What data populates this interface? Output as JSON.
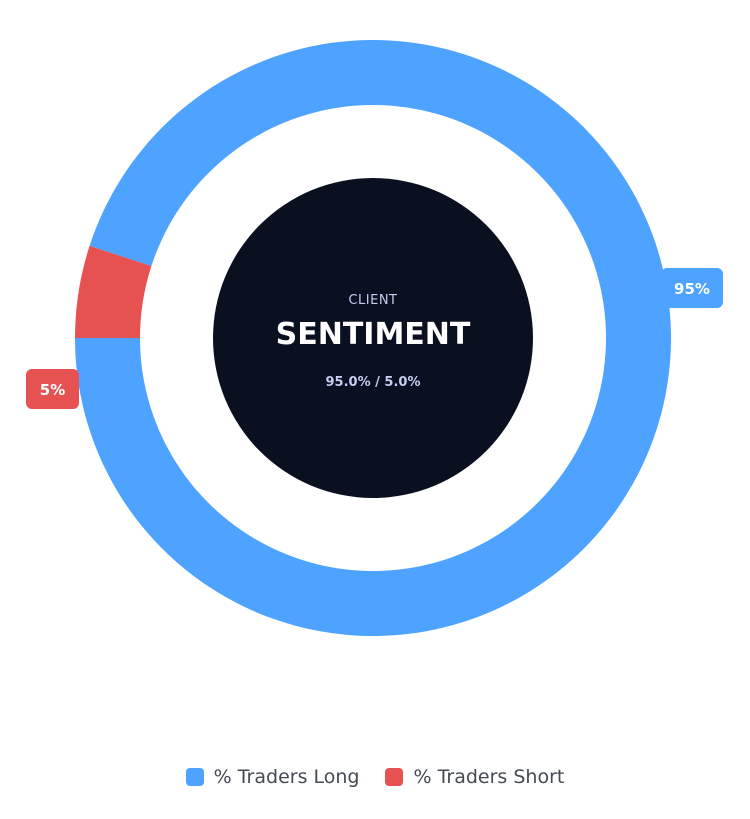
{
  "chart_data": {
    "type": "pie",
    "donut": true,
    "center": {
      "subtitle": "CLIENT",
      "title": "SENTIMENT",
      "ratio_text": "95.0% / 5.0%"
    },
    "series": [
      {
        "name": "% Traders Long",
        "value": 95.0,
        "label": "95%",
        "color": "#4da3ff"
      },
      {
        "name": "% Traders Short",
        "value": 5.0,
        "label": "5%",
        "color": "#e65252"
      }
    ],
    "legend_placement": "bottom"
  }
}
